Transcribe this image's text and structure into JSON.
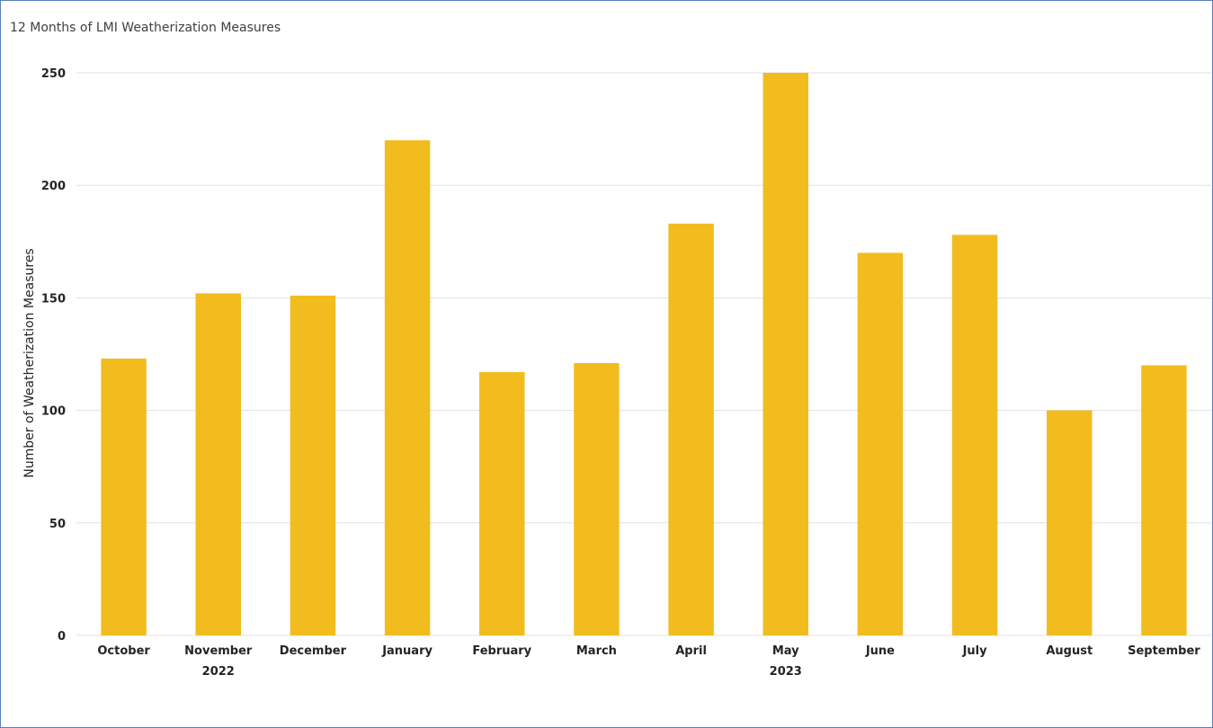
{
  "chart_data": {
    "type": "bar",
    "title": "12 Months of LMI Weatherization Measures",
    "xlabel": "",
    "ylabel": "Number of Weatherization Measures",
    "categories": [
      "October",
      "November",
      "December",
      "January",
      "February",
      "March",
      "April",
      "May",
      "June",
      "July",
      "August",
      "September"
    ],
    "year_labels": [
      {
        "category": "November",
        "label": "2022"
      },
      {
        "category": "May",
        "label": "2023"
      }
    ],
    "values": [
      123,
      152,
      151,
      220,
      117,
      121,
      183,
      250,
      170,
      178,
      100,
      120
    ],
    "ylim": [
      0,
      250
    ],
    "yticks": [
      0,
      50,
      100,
      150,
      200,
      250
    ],
    "grid": true,
    "legend": "none",
    "bar_color": "#F2BC1E",
    "gridline_color": "#E1E1E1"
  }
}
